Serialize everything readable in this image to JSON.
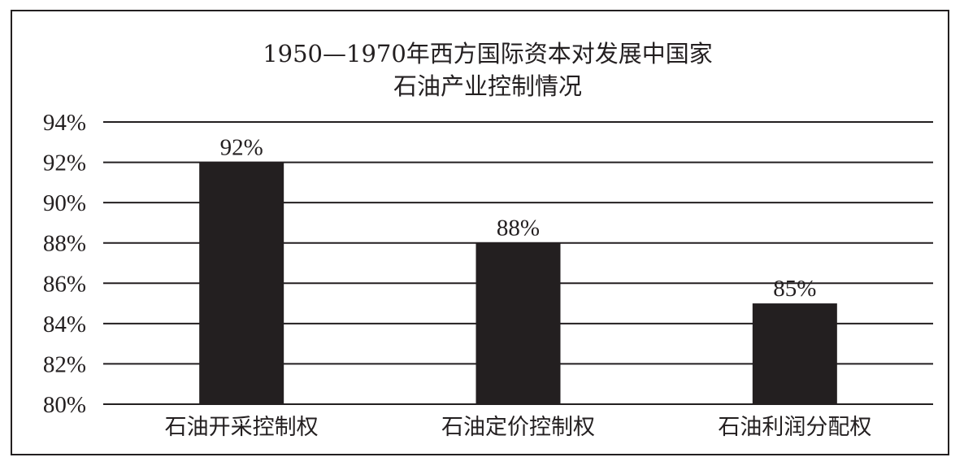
{
  "chart_data": {
    "type": "bar",
    "title_lines": [
      "1950—1970年西方国际资本对发展中国家",
      "石油产业控制情况"
    ],
    "categories": [
      "石油开采控制权",
      "石油定价控制权",
      "石油利润分配权"
    ],
    "values": [
      92,
      88,
      85
    ],
    "value_labels": [
      "92%",
      "88%",
      "85%"
    ],
    "ylim": [
      80,
      94
    ],
    "y_ticks": [
      80,
      82,
      84,
      86,
      88,
      90,
      92,
      94
    ],
    "y_tick_labels": [
      "80%",
      "82%",
      "84%",
      "86%",
      "88%",
      "90%",
      "92%",
      "94%"
    ],
    "grid": true,
    "legend": "none",
    "colors": {
      "bar": "#231f20",
      "grid": "#231f20",
      "text": "#231f20"
    }
  }
}
